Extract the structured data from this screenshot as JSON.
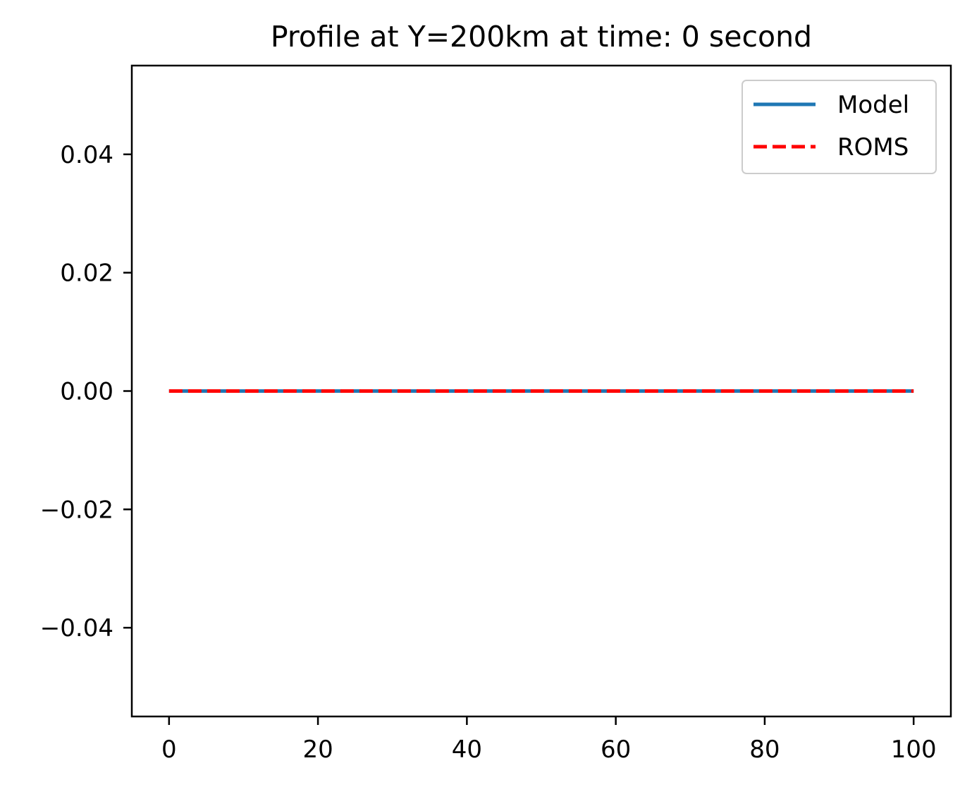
{
  "chart_data": {
    "type": "line",
    "title": "Profile at Y=200km at time: 0 second",
    "xlabel": "",
    "ylabel": "",
    "xlim": [
      -5,
      105
    ],
    "ylim": [
      -0.055,
      0.055
    ],
    "x_ticks": [
      0,
      20,
      40,
      60,
      80,
      100
    ],
    "x_tick_labels": [
      "0",
      "20",
      "40",
      "60",
      "80",
      "100"
    ],
    "y_ticks": [
      0.04,
      0.02,
      0.0,
      -0.02,
      -0.04
    ],
    "y_tick_labels": [
      "0.04",
      "0.02",
      "0.00",
      "−0.02",
      "−0.04"
    ],
    "grid": false,
    "legend_position": "top-right",
    "series": [
      {
        "name": "Model",
        "color": "#1f77b4",
        "style": "solid",
        "x": [
          0,
          100
        ],
        "y": [
          0,
          0
        ]
      },
      {
        "name": "ROMS",
        "color": "#ff0000",
        "style": "dashed",
        "x": [
          0,
          100
        ],
        "y": [
          0,
          0
        ]
      }
    ]
  }
}
